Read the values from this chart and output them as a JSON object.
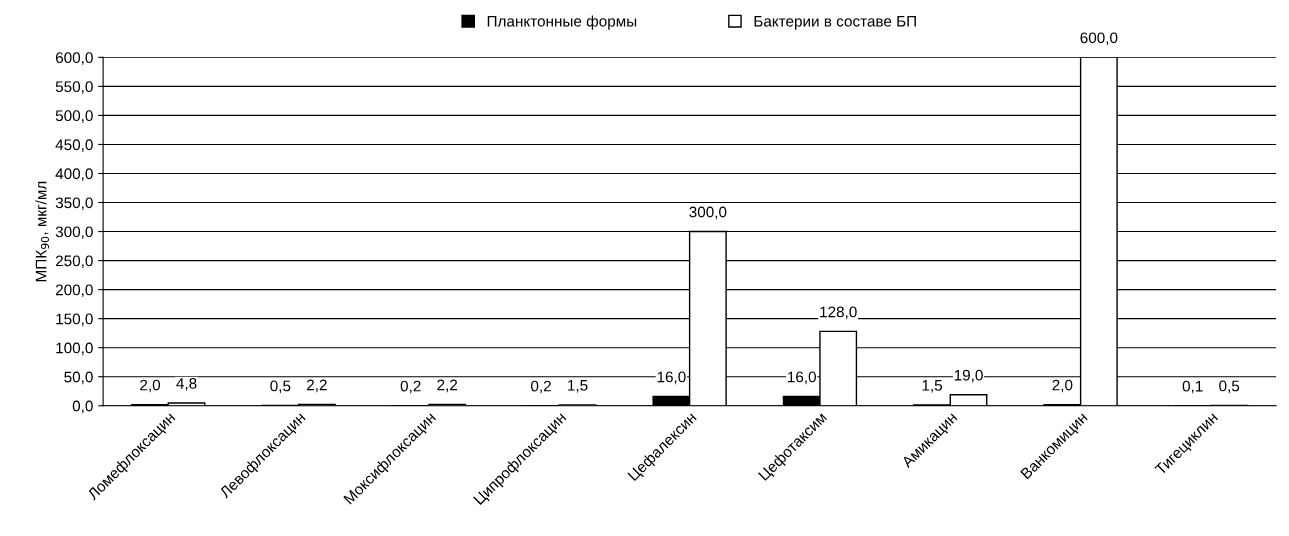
{
  "chart_data": {
    "type": "bar",
    "ylabel": "МПК$_{90}$, мкг/мл",
    "categories": [
      "Ломефлоксацин",
      "Левофлоксацин",
      "Моксифлоксацин",
      "Ципрофлоксацин",
      "Цефалексин",
      "Цефотаксим",
      "Амикацин",
      "Ванкомицин",
      "Тигециклин"
    ],
    "series": [
      {
        "name": "Планктонные формы",
        "color": "#000000",
        "values": [
          2.0,
          0.5,
          0.2,
          0.2,
          16.0,
          16.0,
          1.5,
          2.0,
          0.1
        ],
        "value_labels": [
          "2,0",
          "0,5",
          "0,2",
          "0,2",
          "16,0",
          "16,0",
          "1,5",
          "2,0",
          "0,1"
        ]
      },
      {
        "name": "Бактерии в составе БП",
        "color": "#ffffff",
        "values": [
          4.8,
          2.2,
          2.2,
          1.5,
          300.0,
          128.0,
          19.0,
          600.0,
          0.5
        ],
        "value_labels": [
          "4,8",
          "2,2",
          "2,2",
          "1,5",
          "300,0",
          "128,0",
          "19,0",
          "600,0",
          "0,5"
        ]
      }
    ],
    "ylim": [
      0,
      600
    ],
    "yticks": [
      {
        "value": 0,
        "label": "0,0"
      },
      {
        "value": 50,
        "label": "50,0"
      },
      {
        "value": 100,
        "label": "100,0"
      },
      {
        "value": 150,
        "label": "150,0"
      },
      {
        "value": 200,
        "label": "200,0"
      },
      {
        "value": 250,
        "label": "250,0"
      },
      {
        "value": 300,
        "label": "300,0"
      },
      {
        "value": 350,
        "label": "350,0"
      },
      {
        "value": 400,
        "label": "400,0"
      },
      {
        "value": 450,
        "label": "450,0"
      },
      {
        "value": 500,
        "label": "500,0"
      },
      {
        "value": 550,
        "label": "550,0"
      },
      {
        "value": 600,
        "label": "600,0"
      }
    ],
    "grid": "y",
    "legend": "top"
  }
}
